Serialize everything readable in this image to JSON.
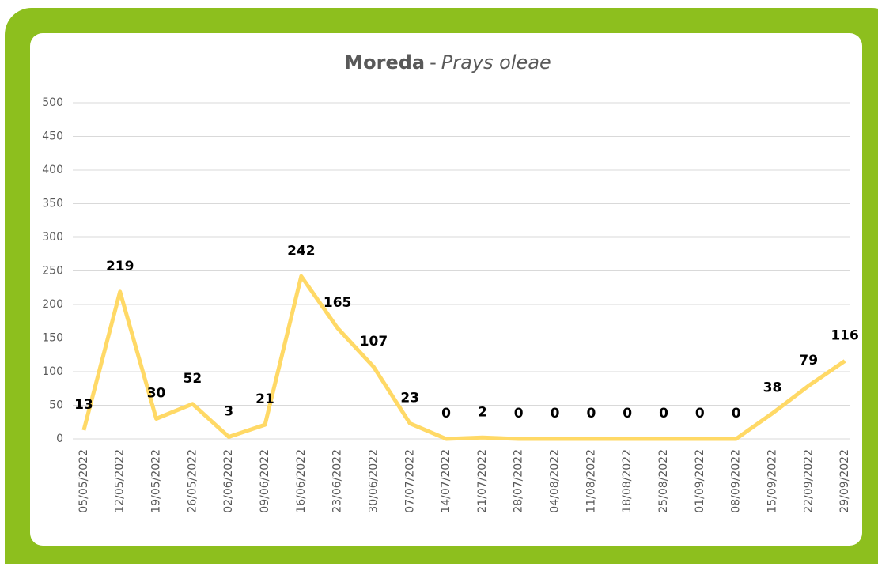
{
  "chart_data": {
    "type": "line",
    "title": "Moreda",
    "title_separator": "-",
    "subtitle": "Prays oleae",
    "categories": [
      "05/05/2022",
      "12/05/2022",
      "19/05/2022",
      "26/05/2022",
      "02/06/2022",
      "09/06/2022",
      "16/06/2022",
      "23/06/2022",
      "30/06/2022",
      "07/07/2022",
      "14/07/2022",
      "21/07/2022",
      "28/07/2022",
      "04/08/2022",
      "11/08/2022",
      "18/08/2022",
      "25/08/2022",
      "01/09/2022",
      "08/09/2022",
      "15/09/2022",
      "22/09/2022",
      "29/09/2022"
    ],
    "values": [
      13,
      219,
      30,
      52,
      3,
      21,
      242,
      165,
      107,
      23,
      0,
      2,
      0,
      0,
      0,
      0,
      0,
      0,
      0,
      38,
      79,
      116
    ],
    "color": "#ffd966",
    "frame_color": "#8dbf1e",
    "ylim": [
      0,
      500
    ],
    "yticks": [
      0,
      50,
      100,
      150,
      200,
      250,
      300,
      350,
      400,
      450,
      500
    ],
    "grid": true
  }
}
